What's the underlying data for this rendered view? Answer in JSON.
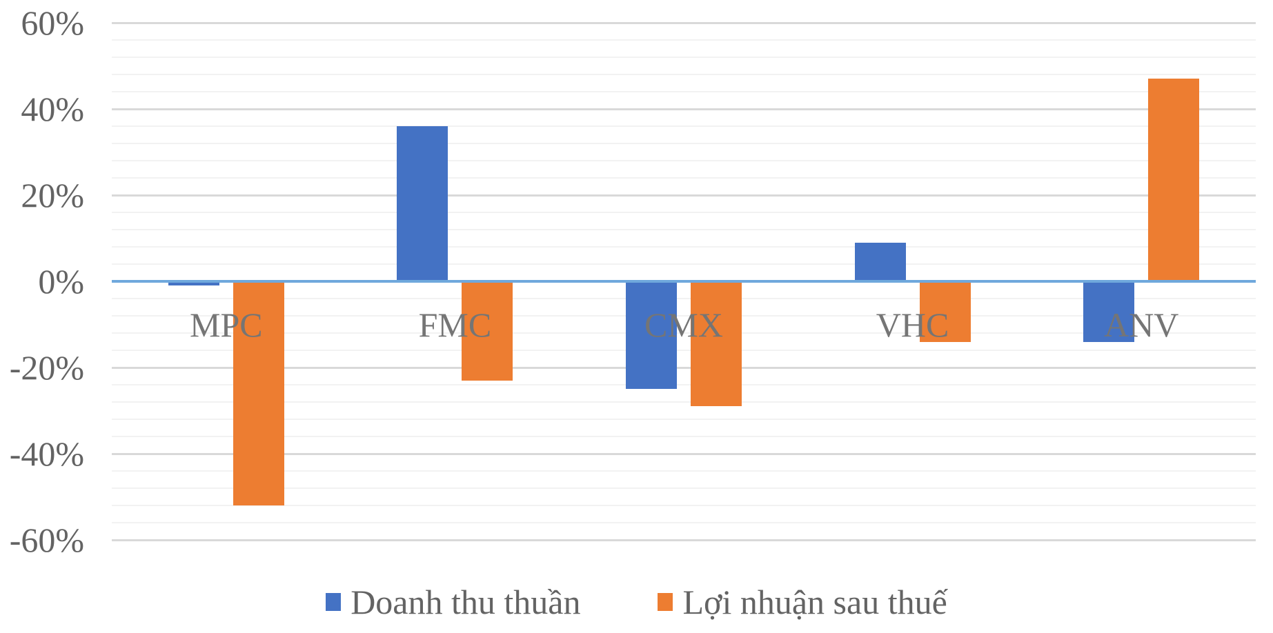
{
  "chart_data": {
    "type": "bar",
    "title": "",
    "xlabel": "",
    "ylabel": "",
    "categories": [
      "MPC",
      "FMC",
      "CMX",
      "VHC",
      "ANV"
    ],
    "series": [
      {
        "name": "Doanh thu thuần",
        "color": "#4472C4",
        "values": [
          -1,
          36,
          -25,
          9,
          -14
        ]
      },
      {
        "name": "Lợi nhuận sau thuế",
        "color": "#ED7D31",
        "values": [
          -52,
          -23,
          -29,
          -14,
          47
        ]
      }
    ],
    "ylim": [
      -60,
      60
    ],
    "y_major_step": 20,
    "y_minor_step": 4,
    "y_ticks": [
      {
        "label": "60%",
        "value": 60
      },
      {
        "label": "40%",
        "value": 40
      },
      {
        "label": "20%",
        "value": 20
      },
      {
        "label": "0%",
        "value": 0
      },
      {
        "label": "-20%",
        "value": -20
      },
      {
        "label": "-40%",
        "value": -40
      },
      {
        "label": "-60%",
        "value": -60
      }
    ],
    "grid": true,
    "legend_position": "bottom"
  },
  "colors": {
    "background": "#FFFFFF",
    "axis_line": "#6FA8DC",
    "gridline_major": "#D9D9D9",
    "gridline_minor": "#F2F2F2",
    "tick_text": "#636363",
    "category_text": "#757575",
    "legend_text": "#636363"
  }
}
